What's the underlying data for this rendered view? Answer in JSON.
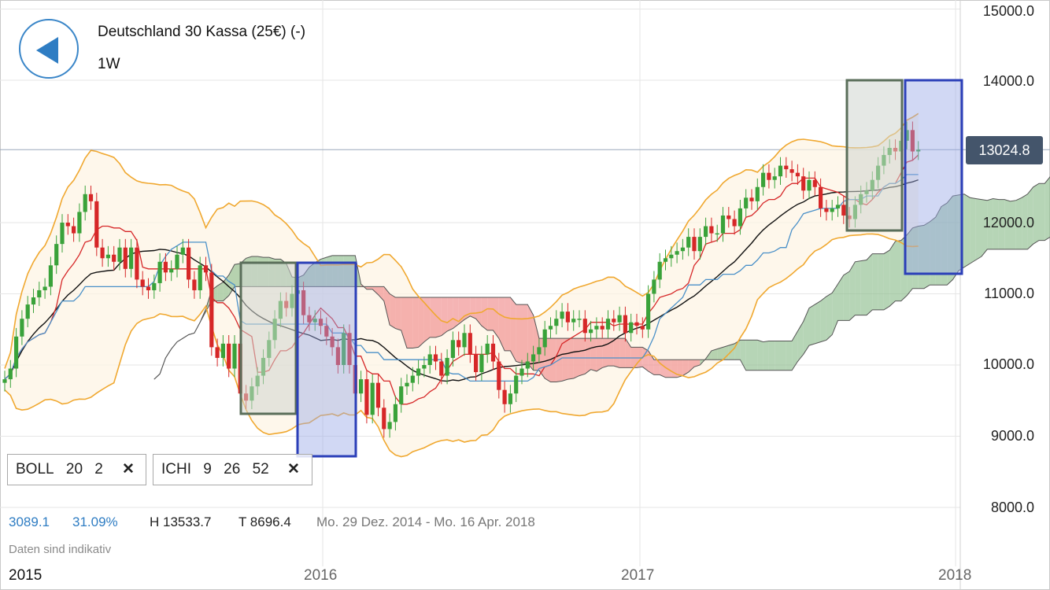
{
  "header": {
    "title": "Deutschland 30 Kassa (25€) (-)",
    "period": "1W"
  },
  "last_price": "13024.8",
  "indicators": [
    {
      "name": "BOLL",
      "p1": "20",
      "p2": "2",
      "p3": ""
    },
    {
      "name": "ICHI",
      "p1": "9",
      "p2": "26",
      "p3": "52"
    }
  ],
  "stats": {
    "range": "3089.1",
    "pct": "31.09%",
    "high": "H 13533.7",
    "low": "T 8696.4",
    "dates": "Mo. 29 Dez. 2014 - Mo. 16 Apr. 2018"
  },
  "note": "Daten sind indikativ",
  "colors": {
    "accent": "#2f7dc3",
    "up": "#3aa23a",
    "down": "#d62728",
    "boll": "#f0a830",
    "ichi_green": "#8fbf8f",
    "ichi_red": "#f08c8c",
    "box_blue": "#2b3fb8",
    "box_gray": "#5a6e5a"
  },
  "chart_data": {
    "type": "candlestick",
    "y_ticks": [
      "15000.0",
      "14000.0",
      "13024.8",
      "12000.0",
      "11000.0",
      "10000.0",
      "9000.0",
      "8000.0"
    ],
    "y_tick_values": [
      15000,
      14000,
      13024.8,
      12000,
      11000,
      10000,
      9000,
      8000
    ],
    "x_ticks": [
      "2015",
      "2016",
      "2017",
      "2018"
    ],
    "ylim": [
      7500,
      15100
    ],
    "xlim": [
      "2014-12-29",
      "2018-04-16"
    ],
    "series": [
      {
        "name": "BOLL"
      },
      {
        "name": "ICHI"
      }
    ],
    "closes": [
      9800,
      9950,
      10400,
      10650,
      10850,
      10950,
      11050,
      11100,
      11400,
      11700,
      12000,
      11950,
      11850,
      12150,
      12400,
      12300,
      11650,
      11500,
      11550,
      11450,
      11650,
      11350,
      11650,
      11200,
      11100,
      11050,
      11150,
      11450,
      11300,
      11350,
      11550,
      11650,
      11200,
      11050,
      11400,
      11300,
      10250,
      10100,
      10300,
      9950,
      10300,
      9600,
      9500,
      9700,
      9850,
      10100,
      10350,
      10650,
      10900,
      10800,
      11000,
      11050,
      10700,
      10600,
      10650,
      10550,
      10400,
      10250,
      10000,
      10450,
      10000,
      9600,
      9800,
      9300,
      9750,
      9400,
      9100,
      9200,
      9450,
      9700,
      9750,
      9850,
      9950,
      10000,
      10150,
      10050,
      9850,
      10100,
      10350,
      10250,
      10450,
      10150,
      9900,
      10150,
      10300,
      10050,
      9650,
      9450,
      9600,
      9850,
      9950,
      10050,
      10150,
      10250,
      10500,
      10550,
      10650,
      10750,
      10600,
      10650,
      10650,
      10450,
      10500,
      10550,
      10500,
      10650,
      10600,
      10700,
      10450,
      10600,
      10550,
      10500,
      11000,
      11200,
      11450,
      11500,
      11550,
      11600,
      11650,
      11800,
      11600,
      11800,
      11950,
      11850,
      11850,
      12100,
      12050,
      11950,
      12200,
      12350,
      12300,
      12500,
      12700,
      12600,
      12650,
      12800,
      12750,
      12700,
      12650,
      12450,
      12600,
      12500,
      12200,
      12150,
      12200,
      12250,
      12100,
      12050,
      12250,
      12400,
      12450,
      12600,
      12800,
      12950,
      13050,
      13000,
      13150,
      13300,
      13000,
      13024.8
    ]
  }
}
